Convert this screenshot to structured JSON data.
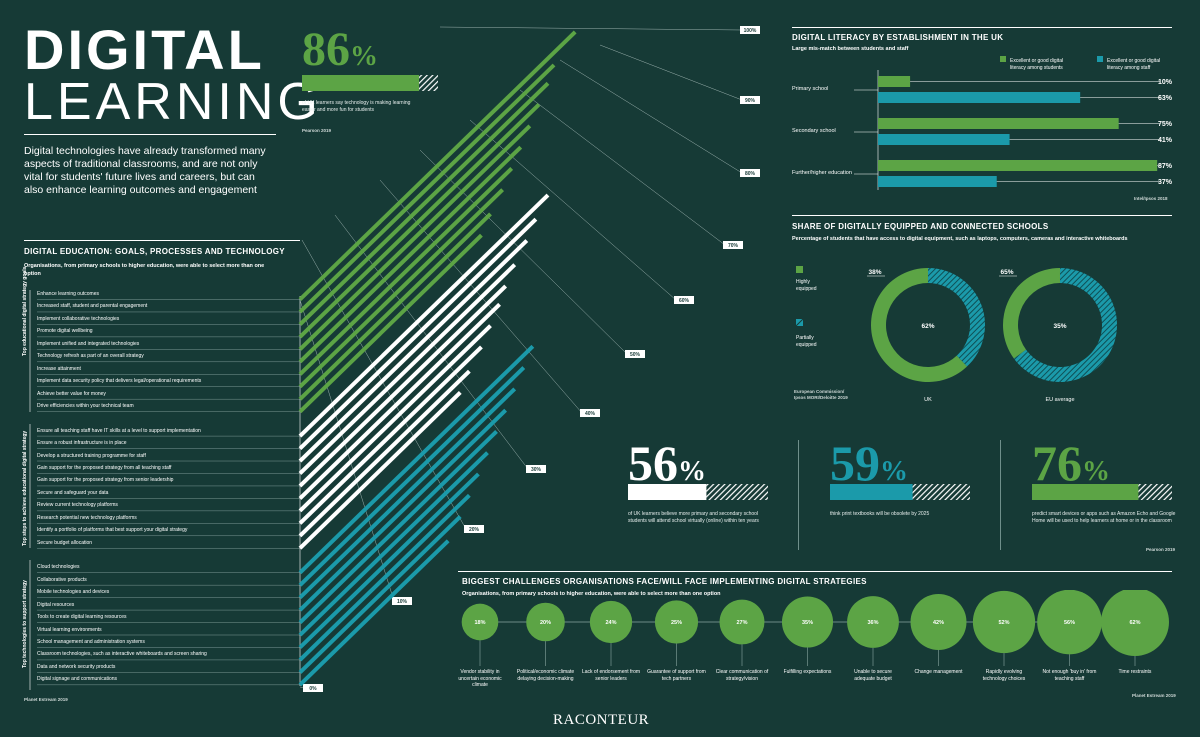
{
  "header": {
    "title_line1": "DIGITAL",
    "title_line2": "LEARNING",
    "intro": "Digital technologies have already transformed many aspects of traditional classrooms, and are not only vital for students' future lives and careers, but can also enhance learning outcomes and engagement"
  },
  "stat86": {
    "value": "86",
    "pct": "%",
    "text": "of UK learners say technology is making learning easier and more fun for students",
    "source": "Pearson 2019"
  },
  "goals": {
    "title": "DIGITAL EDUCATION: GOALS, PROCESSES AND TECHNOLOGY",
    "subtitle": "Organisations, from primary schools to higher education, were able to select more than one option",
    "source": "Planet Estream 2019",
    "group_labels": [
      "Top educational digital strategy goals",
      "Top steps to achieve educational digital strategy",
      "Top technologies to support strategy"
    ],
    "items": [
      "Enhance learning outcomes",
      "Increased staff, student and parental engagement",
      "Implement collaborative technologies",
      "Promote digital wellbeing",
      "Implement unified and integrated technologies",
      "Technology refresh as part of an overall strategy",
      "Increase attainment",
      "Implement data security policy that delivers legal/operational requirements",
      "Achieve better value for money",
      "Drive efficiencies within your technical team",
      "Ensure all teaching staff have IT skills at a level to support implementation",
      "Ensure a robust infrastructure is in place",
      "Develop a structured training programme for staff",
      "Gain support for the proposed strategy from all teaching staff",
      "Gain support for the proposed strategy from senior leadership",
      "Secure and safeguard your data",
      "Review current technology platforms",
      "Research potential new technology platforms",
      "Identify a portfolio of platforms that best support your digital strategy",
      "Secure budget allocation",
      "Cloud technologies",
      "Collaborative products",
      "Mobile technologies and devices",
      "Digital resources",
      "Tools to create digital learning resources",
      "Virtual learning environments",
      "School management and administration systems",
      "Classroom technologies, such as interactive whiteboards and screen sharing",
      "Data and network security products",
      "Digital signage and communications"
    ],
    "ticks": [
      "0%",
      "10%",
      "20%",
      "30%",
      "40%",
      "50%",
      "60%",
      "70%",
      "80%",
      "90%",
      "100%"
    ]
  },
  "literacy": {
    "title": "DIGITAL LITERACY BY ESTABLISHMENT IN THE UK",
    "subtitle": "Large mis-match between students and staff",
    "source": "Intel/Ipsos 2018"
  },
  "schools": {
    "title": "SHARE OF DIGITALLY EQUIPPED AND CONNECTED SCHOOLS",
    "subtitle": "Percentage of students that have access to digital equipment, such as laptops, computers, cameras and interactive whiteboards",
    "source": "European Commission/ Ipsos MORI/Deloitte 2019"
  },
  "stats": [
    {
      "value": "56",
      "pct": "%",
      "text": "of UK learners believe more primary and secondary school students will attend school virtually (online) within ten years"
    },
    {
      "value": "59",
      "pct": "%",
      "text": "think print textbooks will be obsolete by 2025"
    },
    {
      "value": "76",
      "pct": "%",
      "text": "predict smart devices or apps such as Amazon Echo and Google Home will be used to help learners at home or in the classroom"
    }
  ],
  "stats_source": "Pearson 2019",
  "challenges": {
    "title": "BIGGEST CHALLENGES ORGANISATIONS FACE/WILL FACE IMPLEMENTING DIGITAL STRATEGIES",
    "subtitle": "Organisations, from primary schools to higher education, were able to select more than one option",
    "source": "Planet Estream 2019"
  },
  "footer": {
    "brand": "RACONTEUR"
  },
  "colors": {
    "bg": "#163a36",
    "green": "#5ca445",
    "teal": "#1b9aaa",
    "white": "#ffffff"
  },
  "chart_data": [
    {
      "type": "bar",
      "title": "DIGITAL EDUCATION: GOALS, PROCESSES AND TECHNOLOGY",
      "categories": [
        "Enhance learning outcomes",
        "Increased staff, student and parental engagement",
        "Implement collaborative technologies",
        "Promote digital wellbeing",
        "Implement unified and integrated technologies",
        "Technology refresh as part of an overall strategy",
        "Increase attainment",
        "Implement data security policy that delivers legal/operational requirements",
        "Achieve better value for money",
        "Drive efficiencies within your technical team",
        "Ensure all teaching staff have IT skills at a level to support implementation",
        "Ensure a robust infrastructure is in place",
        "Develop a structured training programme for staff",
        "Gain support for the proposed strategy from all teaching staff",
        "Gain support for the proposed strategy from senior leadership",
        "Secure and safeguard your data",
        "Review current technology platforms",
        "Research potential new technology platforms",
        "Identify a portfolio of platforms that best support your digital strategy",
        "Secure budget allocation",
        "Cloud technologies",
        "Collaborative products",
        "Mobile technologies and devices",
        "Digital resources",
        "Tools to create digital learning resources",
        "Virtual learning environments",
        "School management and administration systems",
        "Classroom technologies, such as interactive whiteboards and screen sharing",
        "Data and network security products",
        "Digital signage and communications"
      ],
      "values": [
        91,
        84,
        82,
        79,
        76,
        73,
        70,
        67,
        63,
        60,
        82,
        78,
        75,
        71,
        68,
        66,
        63,
        60,
        56,
        53,
        77,
        74,
        71,
        68,
        65,
        62,
        59,
        56,
        53,
        49
      ],
      "ylim": [
        0,
        100
      ]
    },
    {
      "type": "bar",
      "title": "DIGITAL LITERACY BY ESTABLISHMENT IN THE UK",
      "categories": [
        "Primary school",
        "Secondary school",
        "Further/higher education"
      ],
      "series": [
        {
          "name": "Excellent or good digital literacy among students",
          "values": [
            10,
            75,
            87
          ]
        },
        {
          "name": "Excellent or good digital literacy among staff",
          "values": [
            63,
            41,
            37
          ]
        }
      ],
      "ylim": [
        0,
        100
      ]
    },
    {
      "type": "pie",
      "title": "SHARE OF DIGITALLY EQUIPPED AND CONNECTED SCHOOLS",
      "categories": [
        "UK",
        "EU average"
      ],
      "series": [
        {
          "name": "Highly equipped",
          "values": [
            62,
            35
          ]
        },
        {
          "name": "Partially equipped",
          "values": [
            38,
            65
          ]
        }
      ]
    },
    {
      "type": "scatter",
      "title": "BIGGEST CHALLENGES ORGANISATIONS FACE/WILL FACE IMPLEMENTING DIGITAL STRATEGIES",
      "categories": [
        "Vendor stability in uncertain economic climate",
        "Political/economic climate delaying decision-making",
        "Lack of endorsement from senior leaders",
        "Guarantee of support from tech partners",
        "Clear communication of strategy/vision",
        "Fulfilling expectations",
        "Unable to secure adequate budget",
        "Change management",
        "Rapidly evolving technology choices",
        "Not enough 'buy in' from teaching staff",
        "Time restraints"
      ],
      "values": [
        18,
        20,
        24,
        25,
        27,
        35,
        36,
        42,
        52,
        56,
        62
      ]
    }
  ]
}
